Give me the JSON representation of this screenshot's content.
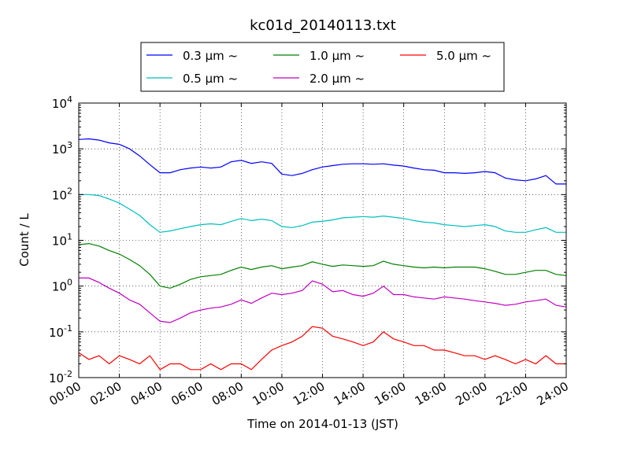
{
  "chart_data": {
    "type": "line",
    "title": "kc01d_20140113.txt",
    "xlabel": "Time on 2014-01-13 (JST)",
    "ylabel": "Count / L",
    "x_unit": "hour of day (JST)",
    "xlim": [
      0,
      24
    ],
    "ylim": [
      0.01,
      10000
    ],
    "yscale": "log",
    "grid": true,
    "legend_position": "top-center",
    "x_ticks": [
      {
        "value": 0,
        "label": "00:00"
      },
      {
        "value": 2,
        "label": "02:00"
      },
      {
        "value": 4,
        "label": "04:00"
      },
      {
        "value": 6,
        "label": "06:00"
      },
      {
        "value": 8,
        "label": "08:00"
      },
      {
        "value": 10,
        "label": "10:00"
      },
      {
        "value": 12,
        "label": "12:00"
      },
      {
        "value": 14,
        "label": "14:00"
      },
      {
        "value": 16,
        "label": "16:00"
      },
      {
        "value": 18,
        "label": "18:00"
      },
      {
        "value": 20,
        "label": "20:00"
      },
      {
        "value": 22,
        "label": "22:00"
      },
      {
        "value": 24,
        "label": "24:00"
      }
    ],
    "y_ticks": [
      {
        "value": 0.01,
        "mant": "10",
        "exp": "-2"
      },
      {
        "value": 0.1,
        "mant": "10",
        "exp": "-1"
      },
      {
        "value": 1,
        "mant": "10",
        "exp": "0"
      },
      {
        "value": 10,
        "mant": "10",
        "exp": "1"
      },
      {
        "value": 100,
        "mant": "10",
        "exp": "2"
      },
      {
        "value": 1000,
        "mant": "10",
        "exp": "3"
      },
      {
        "value": 10000,
        "mant": "10",
        "exp": "4"
      }
    ],
    "series": [
      {
        "name": "0.3 μm  ~",
        "color": "#0000ff",
        "x": [
          0,
          0.5,
          1,
          1.5,
          2,
          2.5,
          3,
          3.5,
          4,
          4.5,
          5,
          5.5,
          6,
          6.5,
          7,
          7.5,
          8,
          8.5,
          9,
          9.5,
          10,
          10.5,
          11,
          11.5,
          12,
          12.5,
          13,
          13.5,
          14,
          14.5,
          15,
          15.5,
          16,
          16.5,
          17,
          17.5,
          18,
          18.5,
          19,
          19.5,
          20,
          20.5,
          21,
          21.5,
          22,
          22.5,
          23,
          23.5,
          24
        ],
        "y": [
          1600,
          1650,
          1550,
          1350,
          1250,
          1000,
          700,
          450,
          300,
          300,
          350,
          380,
          400,
          380,
          400,
          520,
          560,
          480,
          520,
          480,
          280,
          260,
          290,
          350,
          400,
          430,
          460,
          470,
          470,
          460,
          470,
          440,
          420,
          380,
          350,
          340,
          300,
          300,
          290,
          300,
          320,
          300,
          230,
          210,
          200,
          220,
          260,
          170,
          170
        ]
      },
      {
        "name": "0.5 μm  ~",
        "color": "#00bfbf",
        "x": [
          0,
          0.5,
          1,
          1.5,
          2,
          2.5,
          3,
          3.5,
          4,
          4.5,
          5,
          5.5,
          6,
          6.5,
          7,
          7.5,
          8,
          8.5,
          9,
          9.5,
          10,
          10.5,
          11,
          11.5,
          12,
          12.5,
          13,
          13.5,
          14,
          14.5,
          15,
          15.5,
          16,
          16.5,
          17,
          17.5,
          18,
          18.5,
          19,
          19.5,
          20,
          20.5,
          21,
          21.5,
          22,
          22.5,
          23,
          23.5,
          24
        ],
        "y": [
          100,
          100,
          95,
          80,
          65,
          48,
          35,
          22,
          15,
          16,
          18,
          20,
          22,
          23,
          22,
          26,
          30,
          27,
          29,
          27,
          20,
          19,
          21,
          25,
          26,
          28,
          31,
          32,
          33,
          32,
          34,
          32,
          30,
          27,
          25,
          24,
          22,
          21,
          20,
          21,
          22,
          20,
          16,
          15,
          15,
          17,
          19,
          15,
          15
        ]
      },
      {
        "name": "1.0 μm  ~",
        "color": "#008000",
        "x": [
          0,
          0.5,
          1,
          1.5,
          2,
          2.5,
          3,
          3.5,
          4,
          4.5,
          5,
          5.5,
          6,
          6.5,
          7,
          7.5,
          8,
          8.5,
          9,
          9.5,
          10,
          10.5,
          11,
          11.5,
          12,
          12.5,
          13,
          13.5,
          14,
          14.5,
          15,
          15.5,
          16,
          16.5,
          17,
          17.5,
          18,
          18.5,
          19,
          19.5,
          20,
          20.5,
          21,
          21.5,
          22,
          22.5,
          23,
          23.5,
          24
        ],
        "y": [
          8,
          8.5,
          7.5,
          6,
          5,
          3.8,
          2.8,
          1.8,
          1,
          0.9,
          1.1,
          1.4,
          1.6,
          1.7,
          1.8,
          2.2,
          2.6,
          2.3,
          2.6,
          2.8,
          2.4,
          2.6,
          2.8,
          3.4,
          3,
          2.7,
          2.9,
          2.8,
          2.7,
          2.8,
          3.5,
          3,
          2.8,
          2.6,
          2.5,
          2.6,
          2.5,
          2.6,
          2.6,
          2.6,
          2.4,
          2.1,
          1.8,
          1.8,
          2,
          2.2,
          2.2,
          1.8,
          1.7
        ]
      },
      {
        "name": "2.0 μm  ~",
        "color": "#bf00bf",
        "x": [
          0,
          0.5,
          1,
          1.5,
          2,
          2.5,
          3,
          3.5,
          4,
          4.5,
          5,
          5.5,
          6,
          6.5,
          7,
          7.5,
          8,
          8.5,
          9,
          9.5,
          10,
          10.5,
          11,
          11.5,
          12,
          12.5,
          13,
          13.5,
          14,
          14.5,
          15,
          15.5,
          16,
          16.5,
          17,
          17.5,
          18,
          18.5,
          19,
          19.5,
          20,
          20.5,
          21,
          21.5,
          22,
          22.5,
          23,
          23.5,
          24
        ],
        "y": [
          1.5,
          1.5,
          1.2,
          0.9,
          0.7,
          0.5,
          0.4,
          0.26,
          0.17,
          0.16,
          0.2,
          0.26,
          0.3,
          0.33,
          0.35,
          0.4,
          0.5,
          0.42,
          0.55,
          0.7,
          0.65,
          0.7,
          0.8,
          1.3,
          1.1,
          0.75,
          0.8,
          0.65,
          0.6,
          0.7,
          1,
          0.65,
          0.65,
          0.58,
          0.55,
          0.52,
          0.58,
          0.55,
          0.52,
          0.48,
          0.45,
          0.42,
          0.38,
          0.4,
          0.45,
          0.48,
          0.52,
          0.38,
          0.35
        ]
      },
      {
        "name": "5.0 μm  ~",
        "color": "#ff0000",
        "x": [
          0,
          0.5,
          1,
          1.5,
          2,
          2.5,
          3,
          3.5,
          4,
          4.5,
          5,
          5.5,
          6,
          6.5,
          7,
          7.5,
          8,
          8.5,
          9,
          9.5,
          10,
          10.5,
          11,
          11.5,
          12,
          12.5,
          13,
          13.5,
          14,
          14.5,
          15,
          15.5,
          16,
          16.5,
          17,
          17.5,
          18,
          18.5,
          19,
          19.5,
          20,
          20.5,
          21,
          21.5,
          22,
          22.5,
          23,
          23.5,
          24
        ],
        "y": [
          0.035,
          0.025,
          0.03,
          0.02,
          0.03,
          0.025,
          0.02,
          0.03,
          0.015,
          0.02,
          0.02,
          0.015,
          0.015,
          0.02,
          0.015,
          0.02,
          0.02,
          0.015,
          0.025,
          0.04,
          0.05,
          0.06,
          0.08,
          0.13,
          0.12,
          0.08,
          0.07,
          0.06,
          0.05,
          0.06,
          0.1,
          0.07,
          0.06,
          0.05,
          0.05,
          0.04,
          0.04,
          0.035,
          0.03,
          0.03,
          0.025,
          0.03,
          0.025,
          0.02,
          0.025,
          0.02,
          0.03,
          0.02,
          0.02
        ]
      }
    ]
  }
}
